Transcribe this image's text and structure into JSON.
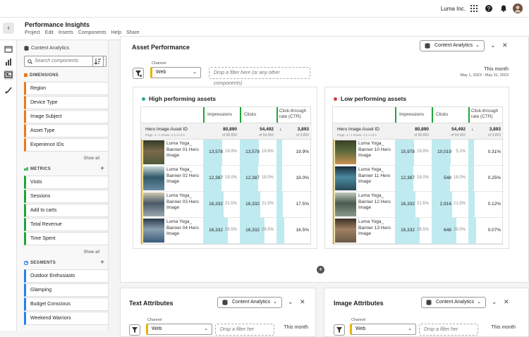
{
  "topbar": {
    "org": "Luma Inc."
  },
  "app": {
    "title": "Performance Insights",
    "menu": [
      "Project",
      "Edit",
      "Inserts",
      "Components",
      "Help",
      "Share"
    ]
  },
  "panel": {
    "title": "Content Analytics",
    "search_placeholder": "Search components",
    "dimensions": {
      "header": "DIMENSIONS",
      "items": [
        "Region",
        "Device Type",
        "Image Subject",
        "Asset Type",
        "Experience IDs"
      ],
      "show_all": "Show all"
    },
    "metrics": {
      "header": "METRICS",
      "items": [
        "Visits",
        "Sessions",
        "Add to carts",
        "Total Revenue",
        "Time Spent"
      ],
      "show_all": "Show all"
    },
    "segments": {
      "header": "SEGMENTS",
      "items": [
        "Outdoor Enthusiasts",
        "Glamping",
        "Budget Conscious",
        "Weekend Warriors"
      ]
    }
  },
  "asset_card": {
    "title": "Asset Performance",
    "source": "Content Analytics",
    "channel_label": "Channel",
    "channel_value": "Web",
    "dropzone": "Drop a filter here (or any other components)",
    "date_label": "This month",
    "date_range": "May 1, 2023 - May 31, 2023",
    "high": {
      "title": "High performing assets",
      "dot_color": "#2aa39c",
      "col_impressions": "Impressions",
      "col_clicks": "Clicks",
      "col_ctr": "Click-through rate (CTR)",
      "row_header": "Hero Image Asset ID",
      "row_sub": "Page: 1 / 1 Rows: 4 1-4 of 4",
      "total_impr": "80,890",
      "total_impr_sub": "of 80,890",
      "total_clicks": "54,492",
      "total_clicks_sub": "of 54,492",
      "total_ctr": "3,893",
      "total_ctr_sub": "of 3,893",
      "rows": [
        {
          "name": "Luma Yoga_ Banner 01 Hero Image",
          "impr": "13,578",
          "impr_pct": "19.9%",
          "clicks": "13,578",
          "clicks_pct": "19.9%",
          "ctr": "19.9%",
          "share": 0.199
        },
        {
          "name": "Luma Yoga_ Banner 02 Hero Image",
          "impr": "12,387",
          "impr_pct": "18.0%",
          "clicks": "12,387",
          "clicks_pct": "18.0%",
          "ctr": "18.0%",
          "share": 0.18
        },
        {
          "name": "Luma Yoga_ Banner 03 Hero Image",
          "impr": "16,332",
          "impr_pct": "21.5%",
          "clicks": "16,332",
          "clicks_pct": "21.5%",
          "ctr": "17.5%",
          "share": 0.215
        },
        {
          "name": "Luma Yoga_ Banner 04 Hero Image",
          "impr": "16,332",
          "impr_pct": "29.5%",
          "clicks": "16,332",
          "clicks_pct": "29.5%",
          "ctr": "16.5%",
          "share": 0.295
        }
      ]
    },
    "low": {
      "title": "Low performing assets",
      "dot_color": "#d7373f",
      "col_impressions": "Impressions",
      "col_clicks": "Clicks",
      "col_ctr": "Click-through rate (CTR)",
      "row_header": "Hero Image Asset ID",
      "row_sub": "Page: 1 / 1 Rows: 4 1-4 of 4",
      "total_impr": "80,890",
      "total_impr_sub": "of 80,890",
      "total_clicks": "54,492",
      "total_clicks_sub": "of 54,492",
      "total_ctr": "3,893",
      "total_ctr_sub": "of 3,893",
      "rows": [
        {
          "name": "Luma Yoga_ Banner 10 Hero Image",
          "impr": "15,978",
          "impr_pct": "19.9%",
          "clicks": "10,019",
          "clicks_pct": "5.1%",
          "ctr": "0.31%",
          "share": 0.199
        },
        {
          "name": "Luma Yoga_ Banner 11 Hero Image",
          "impr": "12,387",
          "impr_pct": "18.0%",
          "clicks": "548",
          "clicks_pct": "18.0%",
          "ctr": "0.25%",
          "share": 0.18
        },
        {
          "name": "Luma Yoga_ Banner 12 Hero Image",
          "impr": "16,332",
          "impr_pct": "21.5%",
          "clicks": "2,916",
          "clicks_pct": "21.5%",
          "ctr": "0.12%",
          "share": 0.215
        },
        {
          "name": "Luma Yoga_ Banner 13 Hero Image",
          "impr": "16,332",
          "impr_pct": "29.5%",
          "clicks": "648",
          "clicks_pct": "29.5%",
          "ctr": "0.07%",
          "share": 0.295
        }
      ]
    }
  },
  "text_card": {
    "title": "Text Attributes",
    "source": "Content Analytics",
    "channel_label": "Channel",
    "channel_value": "Web",
    "dropzone": "Drop a filter her",
    "date_label": "This month"
  },
  "image_card": {
    "title": "Image Attributes",
    "source": "Content Analytics",
    "channel_label": "Channel",
    "channel_value": "Web",
    "dropzone": "Drop a filter her",
    "date_label": "This month"
  },
  "colors": {
    "dimension": "#e87a1e",
    "metric": "#1fa53a",
    "segment": "#2680eb",
    "bar": "#bfeaf0"
  }
}
